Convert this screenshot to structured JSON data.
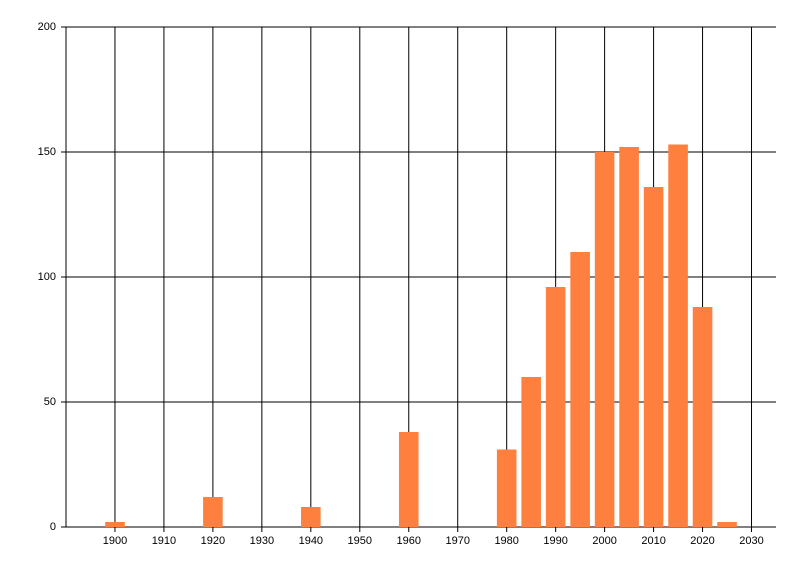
{
  "chart_data": {
    "type": "bar",
    "x": [
      1900,
      1920,
      1940,
      1960,
      1980,
      1985,
      1990,
      1995,
      2000,
      2005,
      2010,
      2015,
      2020,
      2025
    ],
    "values": [
      2,
      12,
      8,
      38,
      31,
      60,
      96,
      110,
      150,
      152,
      136,
      153,
      88,
      2
    ],
    "color": "#ff7f3f",
    "xlim": [
      1890,
      2035
    ],
    "xticks": [
      1900,
      1910,
      1920,
      1930,
      1940,
      1950,
      1960,
      1970,
      1980,
      1990,
      2000,
      2010,
      2020,
      2030
    ],
    "ylim": [
      0,
      200
    ],
    "yticks": [
      0,
      50,
      100,
      150,
      200
    ],
    "grid": true
  }
}
